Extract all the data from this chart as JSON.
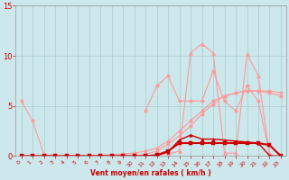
{
  "bg_color": "#cce8ec",
  "grid_color": "#aacccc",
  "line_color_light": "#ff9999",
  "line_color_dark": "#cc0000",
  "xlabel": "Vent moyen/en rafales ( km/h )",
  "xlim": [
    -0.5,
    23.5
  ],
  "ylim": [
    0,
    15
  ],
  "yticks": [
    0,
    5,
    10,
    15
  ],
  "xticks": [
    0,
    1,
    2,
    3,
    4,
    5,
    6,
    7,
    8,
    9,
    10,
    11,
    12,
    13,
    14,
    15,
    16,
    17,
    18,
    19,
    20,
    21,
    22,
    23
  ],
  "curve_a_x": [
    0,
    1,
    2,
    3,
    4,
    5,
    6,
    7,
    8,
    9,
    10,
    11,
    12,
    13,
    14,
    15,
    16,
    17,
    18,
    19,
    20,
    21,
    22,
    23
  ],
  "curve_a_y": [
    5.5,
    3.5,
    0.15,
    0.1,
    0.05,
    0.05,
    0.05,
    0.1,
    0.15,
    0.2,
    0.3,
    0.5,
    0.8,
    1.5,
    2.5,
    3.5,
    4.5,
    5.5,
    6.0,
    6.3,
    6.5,
    6.5,
    6.5,
    6.3
  ],
  "curve_b_x": [
    0,
    1,
    2,
    3,
    4,
    5,
    6,
    7,
    8,
    9,
    10,
    11,
    12,
    13,
    14,
    15,
    16,
    17,
    18,
    19,
    20,
    21,
    22,
    23
  ],
  "curve_b_y": [
    0,
    0,
    0,
    0,
    0,
    0,
    0,
    0,
    0,
    0,
    0,
    0.2,
    0.5,
    1.2,
    2.0,
    3.0,
    4.2,
    5.2,
    6.0,
    6.3,
    6.5,
    6.5,
    6.3,
    6.0
  ],
  "curve_c_x": [
    11,
    12,
    13,
    14,
    15,
    16,
    17,
    18,
    19,
    20,
    21,
    22
  ],
  "curve_c_y": [
    4.5,
    7.0,
    8.0,
    5.5,
    5.5,
    5.5,
    8.5,
    5.5,
    4.5,
    7.0,
    5.5,
    0.2
  ],
  "curve_d_x": [
    13,
    14,
    15,
    16,
    17,
    18,
    19,
    20,
    21,
    22
  ],
  "curve_d_y": [
    0.2,
    0.5,
    10.3,
    11.2,
    10.3,
    0.3,
    0.3,
    10.2,
    8.0,
    0.2
  ],
  "curve_e_x": [
    0,
    1,
    2,
    3,
    4,
    5,
    6,
    7,
    8,
    9,
    10,
    11,
    12,
    13,
    14,
    15,
    16,
    17,
    18,
    19,
    20,
    21,
    22,
    23
  ],
  "curve_e_y": [
    0,
    0,
    0,
    0,
    0,
    0,
    0,
    0,
    0,
    0,
    0,
    0,
    0.05,
    0.4,
    1.6,
    2.1,
    1.7,
    1.7,
    1.6,
    1.5,
    1.4,
    1.3,
    0.05,
    0
  ],
  "curve_f_x": [
    0,
    1,
    2,
    3,
    4,
    5,
    6,
    7,
    8,
    9,
    10,
    11,
    12,
    13,
    14,
    15,
    16,
    17,
    18,
    19,
    20,
    21,
    22,
    23
  ],
  "curve_f_y": [
    0,
    0,
    0,
    0,
    0,
    0,
    0,
    0,
    0,
    0,
    0,
    0,
    0.1,
    0.5,
    1.3,
    1.3,
    1.3,
    1.3,
    1.3,
    1.3,
    1.3,
    1.3,
    1.1,
    0
  ]
}
